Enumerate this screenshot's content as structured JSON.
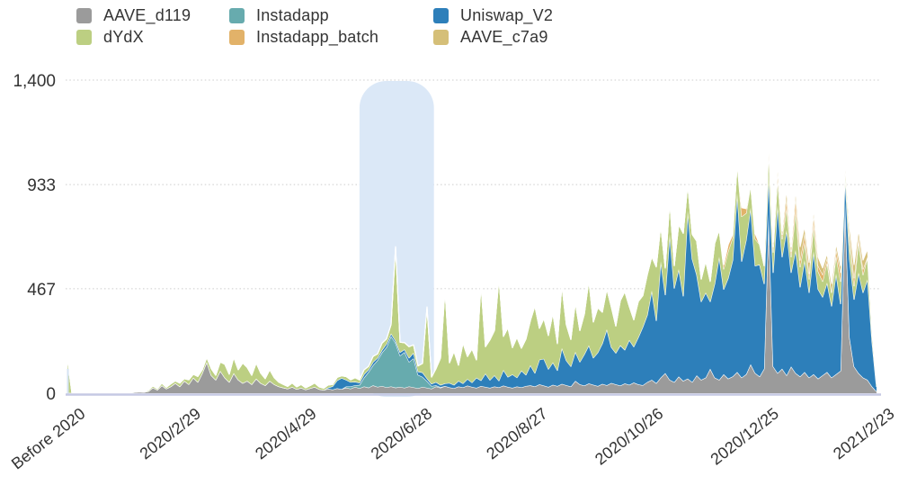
{
  "legend": {
    "items": [
      {
        "label": "AAVE_d119",
        "color": "#9b9b9b"
      },
      {
        "label": "dYdX",
        "color": "#bccf82"
      },
      {
        "label": "Instadapp",
        "color": "#67abae"
      },
      {
        "label": "Instadapp_batch",
        "color": "#e2b269"
      },
      {
        "label": "Uniswap_V2",
        "color": "#2d7fba"
      },
      {
        "label": "AAVE_c7a9",
        "color": "#d5bf78"
      }
    ]
  },
  "chart_data": {
    "type": "area",
    "stacked": true,
    "title": "",
    "xlabel": "",
    "ylabel": "",
    "ylim": [
      0,
      1400
    ],
    "grid": "horizontal-dotted",
    "legend_position": "top-left",
    "y_ticks": [
      {
        "value": 0,
        "label": "0"
      },
      {
        "value": 467,
        "label": "467"
      },
      {
        "value": 933,
        "label": "933"
      },
      {
        "value": 1400,
        "label": "1,400"
      }
    ],
    "x_tick_labels": [
      "Before 2020",
      "2020/2/29",
      "2020/4/29",
      "2020/6/28",
      "2020/8/27",
      "2020/10/26",
      "2020/12/25",
      "2021/2/23"
    ],
    "highlight_region": {
      "start_frac": 0.361,
      "end_frac": 0.453,
      "color": "#dbe8f7"
    },
    "axis_colors": {
      "baseline": "#c5c9e4",
      "y_axis": "#d5e3f2",
      "gridline": "#cccccc",
      "tick_text": "#333333"
    },
    "series": [
      {
        "name": "AAVE_d119",
        "color": "#9b9b9b",
        "pad_start": 0,
        "values": [
          2,
          1,
          1,
          2,
          1,
          1,
          2,
          1,
          2,
          3,
          2,
          2,
          3,
          2,
          2,
          4,
          6,
          5,
          8,
          25,
          15,
          35,
          20,
          30,
          45,
          30,
          55,
          40,
          70,
          50,
          90,
          140,
          80,
          60,
          100,
          70,
          50,
          90,
          60,
          45,
          55,
          40,
          65,
          45,
          35,
          55,
          40,
          30,
          25,
          20,
          28,
          18,
          24,
          16,
          22,
          28,
          18,
          14,
          20,
          16,
          22,
          18,
          25,
          20,
          28,
          22,
          30,
          25,
          35,
          28,
          32,
          26,
          30,
          25,
          28,
          24,
          30,
          26,
          22,
          28,
          24,
          20,
          30,
          24,
          32,
          26,
          22,
          30,
          26,
          34,
          28,
          24,
          32,
          28,
          24,
          30,
          26,
          34,
          28,
          24,
          30,
          26,
          32,
          35,
          30,
          40,
          34,
          28,
          38,
          32,
          42,
          36,
          30,
          55,
          40,
          34,
          44,
          38,
          32,
          42,
          36,
          46,
          40,
          34,
          44,
          38,
          48,
          40,
          36,
          50,
          60,
          45,
          70,
          90,
          60,
          50,
          75,
          55,
          65,
          50,
          80,
          60,
          70,
          110,
          70,
          60,
          85,
          65,
          75,
          95,
          70,
          85,
          130,
          90,
          75,
          110,
          800,
          120,
          90,
          110,
          80,
          120,
          90,
          75,
          95,
          70,
          85,
          65,
          80,
          95,
          70,
          85,
          100,
          850,
          250,
          120,
          90,
          70,
          60,
          30,
          8
        ]
      },
      {
        "name": "Instadapp",
        "color": "#67abae",
        "pad_start": 62,
        "values": [
          5,
          10,
          8,
          15,
          40,
          70,
          90,
          120,
          150,
          180,
          225,
          200,
          140,
          160,
          110,
          130,
          60,
          45,
          30,
          12,
          5,
          3
        ]
      },
      {
        "name": "Uniswap_V2",
        "color": "#2d7fba",
        "pad_start": 58,
        "values": [
          5,
          15,
          35,
          50,
          30,
          20,
          15,
          10,
          15,
          10,
          15,
          10,
          12,
          15,
          12,
          10,
          15,
          12,
          18,
          25,
          15,
          20,
          12,
          10,
          15,
          10,
          12,
          20,
          15,
          25,
          18,
          30,
          20,
          45,
          25,
          60,
          35,
          50,
          30,
          70,
          45,
          60,
          40,
          75,
          50,
          90,
          60,
          110,
          120,
          80,
          100,
          70,
          160,
          110,
          90,
          130,
          100,
          140,
          170,
          120,
          150,
          180,
          250,
          160,
          140,
          180,
          150,
          200,
          160,
          210,
          260,
          300,
          400,
          280,
          520,
          350,
          650,
          420,
          480,
          380,
          750,
          550,
          450,
          350,
          380,
          300,
          420,
          550,
          380,
          450,
          520,
          800,
          520,
          600,
          700,
          480,
          500,
          380,
          180,
          420,
          750,
          500,
          650,
          420,
          550,
          400,
          500,
          380,
          550,
          400,
          350,
          400,
          320,
          450,
          300,
          120,
          350,
          300,
          450,
          380,
          450,
          200,
          20
        ]
      },
      {
        "name": "dYdX",
        "color": "#bccf82",
        "pad_start": 0,
        "values": [
          150,
          0,
          1,
          0,
          1,
          0,
          1,
          0,
          1,
          2,
          1,
          0,
          1,
          0,
          1,
          2,
          1,
          2,
          5,
          8,
          5,
          10,
          6,
          12,
          10,
          15,
          10,
          20,
          15,
          25,
          15,
          20,
          30,
          20,
          40,
          60,
          35,
          70,
          45,
          90,
          60,
          40,
          70,
          45,
          30,
          50,
          30,
          20,
          15,
          10,
          18,
          10,
          15,
          8,
          12,
          18,
          10,
          8,
          12,
          8,
          14,
          10,
          15,
          10,
          18,
          12,
          20,
          15,
          25,
          18,
          30,
          22,
          40,
          420,
          45,
          30,
          50,
          35,
          25,
          40,
          320,
          30,
          60,
          120,
          420,
          90,
          150,
          70,
          180,
          100,
          150,
          80,
          430,
          120,
          180,
          200,
          460,
          150,
          220,
          120,
          180,
          100,
          160,
          200,
          300,
          140,
          180,
          150,
          220,
          120,
          280,
          160,
          120,
          220,
          140,
          180,
          290,
          160,
          200,
          140,
          180,
          180,
          120,
          200,
          260,
          150,
          120,
          160,
          140,
          180,
          150,
          240,
          160,
          120,
          150,
          100,
          200,
          280,
          120,
          110,
          150,
          100,
          140,
          90,
          180,
          120,
          90,
          120,
          100,
          130,
          200,
          120,
          100,
          120,
          90,
          80,
          100,
          90,
          120,
          80,
          100,
          70,
          180,
          90,
          80,
          60,
          120,
          80,
          70,
          90,
          60,
          80,
          100,
          40,
          80,
          60,
          140,
          80,
          100,
          40,
          15
        ]
      },
      {
        "name": "Instadapp_batch",
        "color": "#e2b269",
        "pad_start": 146,
        "values": [
          20,
          30,
          15,
          0,
          40,
          20,
          0,
          25,
          0,
          0,
          50,
          25,
          35,
          20,
          40,
          25,
          55,
          30,
          40,
          25,
          45,
          25,
          30,
          20,
          0,
          30,
          40,
          0,
          25,
          35,
          20,
          25
        ]
      },
      {
        "name": "AAVE_c7a9",
        "color": "#d5bf78",
        "pad_start": 157,
        "values": [
          20,
          30,
          15,
          40,
          20,
          35,
          60,
          30,
          50,
          25,
          40,
          30,
          20,
          40,
          25,
          30,
          25,
          40,
          60,
          30,
          40,
          35,
          15,
          5
        ]
      }
    ]
  }
}
